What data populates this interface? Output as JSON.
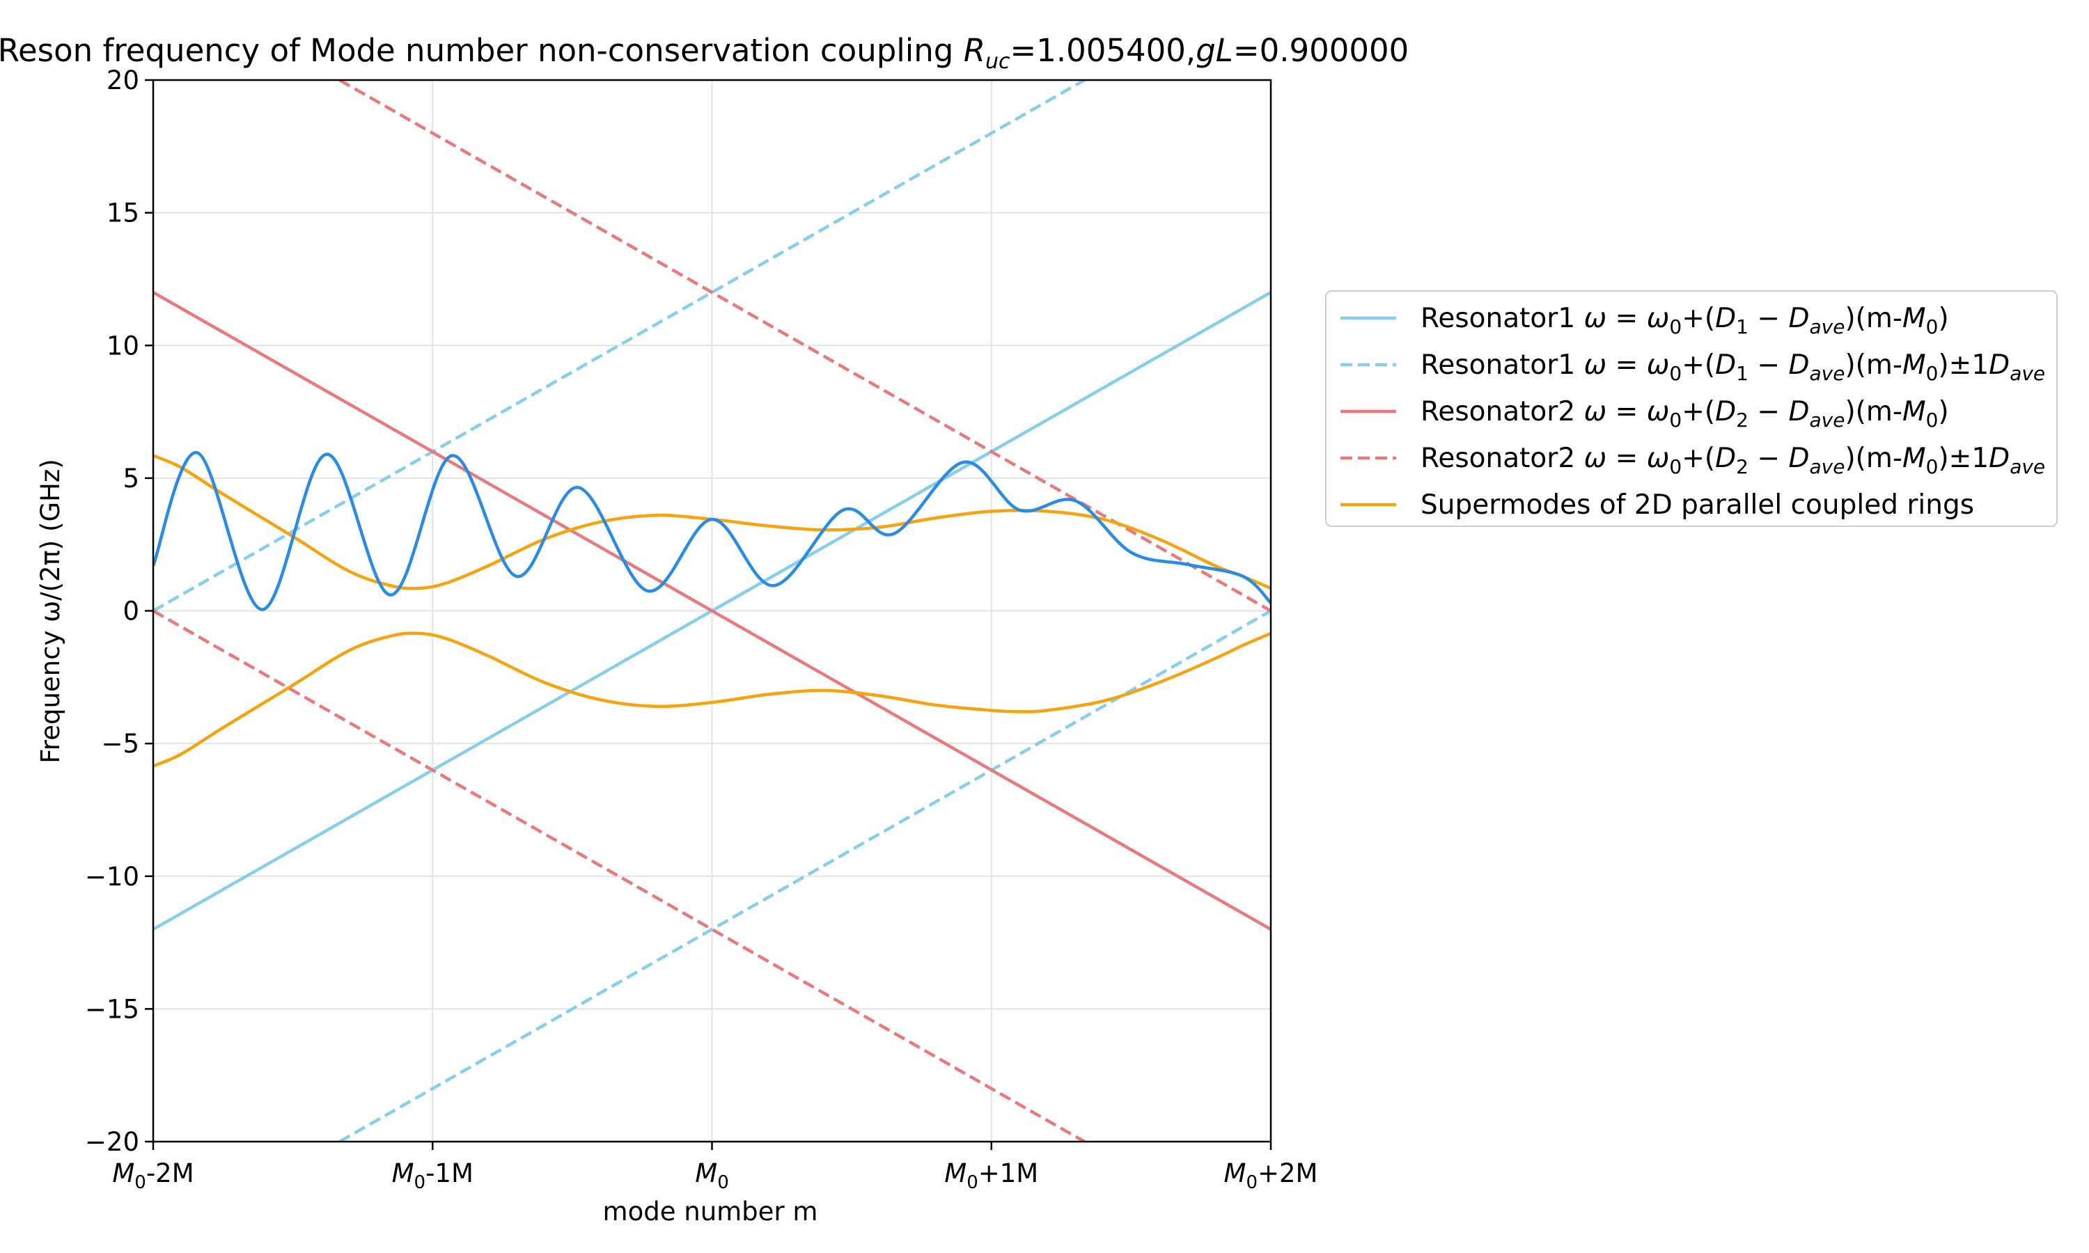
{
  "chart_data": {
    "type": "line",
    "title": {
      "prefix": "Reson frequency of Mode number non-conservation coupling ",
      "r_symbol": "R",
      "r_sub": "uc",
      "r_value": "=1.005400,",
      "g_symbol": "gL",
      "g_value": "=0.900000"
    },
    "xlabel": "mode number m",
    "ylabel": "Frequency ω/(2π) (GHz)",
    "xlim": [
      -2,
      2
    ],
    "ylim": [
      -20,
      20
    ],
    "x_ticks": [
      {
        "value": -2,
        "base": "M",
        "sub": "0",
        "suffix": "-2M"
      },
      {
        "value": -1,
        "base": "M",
        "sub": "0",
        "suffix": "-1M"
      },
      {
        "value": 0,
        "base": "M",
        "sub": "0",
        "suffix": ""
      },
      {
        "value": 1,
        "base": "M",
        "sub": "0",
        "suffix": "+1M"
      },
      {
        "value": 2,
        "base": "M",
        "sub": "0",
        "suffix": "+2M"
      }
    ],
    "y_ticks": [
      {
        "value": 20,
        "label": "20"
      },
      {
        "value": 15,
        "label": "15"
      },
      {
        "value": 10,
        "label": "10"
      },
      {
        "value": 5,
        "label": "5"
      },
      {
        "value": 0,
        "label": "0"
      },
      {
        "value": -5,
        "label": "−5"
      },
      {
        "value": -10,
        "label": "−10"
      },
      {
        "value": -15,
        "label": "−15"
      },
      {
        "value": -20,
        "label": "−20"
      }
    ],
    "grid": true,
    "legend_position": "right, outside plot",
    "series": [
      {
        "key": "res1",
        "legend": "Resonator1 ω = ω0+(D1 − Dave)(m-M0)",
        "color": "#87CEEB",
        "dash": "solid",
        "segments": [
          [
            [
              -2,
              -12
            ],
            [
              2,
              12
            ]
          ]
        ]
      },
      {
        "key": "res1_fsr",
        "legend": "Resonator1 ω = ω0+(D1 − Dave)(m-M0)±1Dave",
        "color": "#87CEEB",
        "dash": "dashed",
        "segments": [
          [
            [
              -2,
              0
            ],
            [
              -1,
              6
            ],
            [
              0,
              12
            ],
            [
              1,
              18
            ],
            [
              1.333,
              20
            ]
          ],
          [
            [
              -1.333,
              -20
            ],
            [
              -1,
              -18
            ],
            [
              0,
              -12
            ],
            [
              1,
              -6
            ],
            [
              2,
              0
            ]
          ]
        ]
      },
      {
        "key": "res2",
        "legend": "Resonator2 ω = ω0+(D2 − Dave)(m-M0)",
        "color": "#E8797D",
        "dash": "solid",
        "segments": [
          [
            [
              -2,
              12
            ],
            [
              2,
              -12
            ]
          ]
        ]
      },
      {
        "key": "res2_fsr",
        "legend": "Resonator2 ω = ω0+(D2 − Dave)(m-M0)±1Dave",
        "color": "#E8797D",
        "dash": "dashed",
        "segments": [
          [
            [
              -1.333,
              20
            ],
            [
              -1,
              18
            ],
            [
              0,
              12
            ],
            [
              1,
              6
            ],
            [
              2,
              0
            ]
          ],
          [
            [
              -2,
              0
            ],
            [
              -1,
              -6
            ],
            [
              0,
              -12
            ],
            [
              1,
              -18
            ],
            [
              1.333,
              -20
            ]
          ]
        ]
      },
      {
        "key": "supermodes",
        "legend": "Supermodes of 2D parallel coupled rings",
        "color": "#F5A30F",
        "dash": "solid",
        "segments": [
          [
            [
              -2,
              5.85
            ],
            [
              -1.9,
              5.4
            ],
            [
              -1.75,
              4.4
            ],
            [
              -1.5,
              2.8
            ],
            [
              -1.3,
              1.5
            ],
            [
              -1.15,
              0.95
            ],
            [
              -1.05,
              0.85
            ],
            [
              -0.95,
              1.05
            ],
            [
              -0.8,
              1.7
            ],
            [
              -0.6,
              2.7
            ],
            [
              -0.4,
              3.35
            ],
            [
              -0.2,
              3.6
            ],
            [
              0,
              3.45
            ],
            [
              0.2,
              3.2
            ],
            [
              0.4,
              3.05
            ],
            [
              0.6,
              3.15
            ],
            [
              0.8,
              3.5
            ],
            [
              1,
              3.75
            ],
            [
              1.2,
              3.75
            ],
            [
              1.4,
              3.45
            ],
            [
              1.6,
              2.7
            ],
            [
              1.8,
              1.7
            ],
            [
              1.9,
              1.3
            ],
            [
              2,
              0.85
            ]
          ],
          [
            [
              -2,
              -5.85
            ],
            [
              -1.9,
              -5.4
            ],
            [
              -1.75,
              -4.4
            ],
            [
              -1.5,
              -2.8
            ],
            [
              -1.3,
              -1.5
            ],
            [
              -1.15,
              -0.95
            ],
            [
              -1.05,
              -0.85
            ],
            [
              -0.95,
              -1.05
            ],
            [
              -0.8,
              -1.7
            ],
            [
              -0.6,
              -2.7
            ],
            [
              -0.4,
              -3.35
            ],
            [
              -0.2,
              -3.6
            ],
            [
              0,
              -3.45
            ],
            [
              0.2,
              -3.15
            ],
            [
              0.4,
              -3.0
            ],
            [
              0.6,
              -3.2
            ],
            [
              0.8,
              -3.55
            ],
            [
              1,
              -3.75
            ],
            [
              1.1,
              -3.8
            ],
            [
              1.2,
              -3.75
            ],
            [
              1.4,
              -3.4
            ],
            [
              1.6,
              -2.7
            ],
            [
              1.8,
              -1.8
            ],
            [
              1.9,
              -1.3
            ],
            [
              2,
              -0.85
            ]
          ]
        ]
      },
      {
        "key": "oscillation",
        "legend": "",
        "color": "#2A8BE5",
        "dash": "solid",
        "segments": [
          [
            [
              -2,
              1.7
            ],
            [
              -1.84,
              5.95
            ],
            [
              -1.61,
              0.05
            ],
            [
              -1.38,
              5.9
            ],
            [
              -1.15,
              0.6
            ],
            [
              -0.93,
              5.85
            ],
            [
              -0.7,
              1.3
            ],
            [
              -0.48,
              4.65
            ],
            [
              -0.23,
              0.75
            ],
            [
              0,
              3.45
            ],
            [
              0.22,
              0.95
            ],
            [
              0.47,
              3.8
            ],
            [
              0.65,
              2.9
            ],
            [
              0.9,
              5.6
            ],
            [
              1.1,
              3.8
            ],
            [
              1.3,
              4.15
            ],
            [
              1.5,
              2.2
            ],
            [
              1.7,
              1.75
            ],
            [
              1.9,
              1.3
            ],
            [
              2,
              0.3
            ]
          ]
        ]
      }
    ]
  }
}
